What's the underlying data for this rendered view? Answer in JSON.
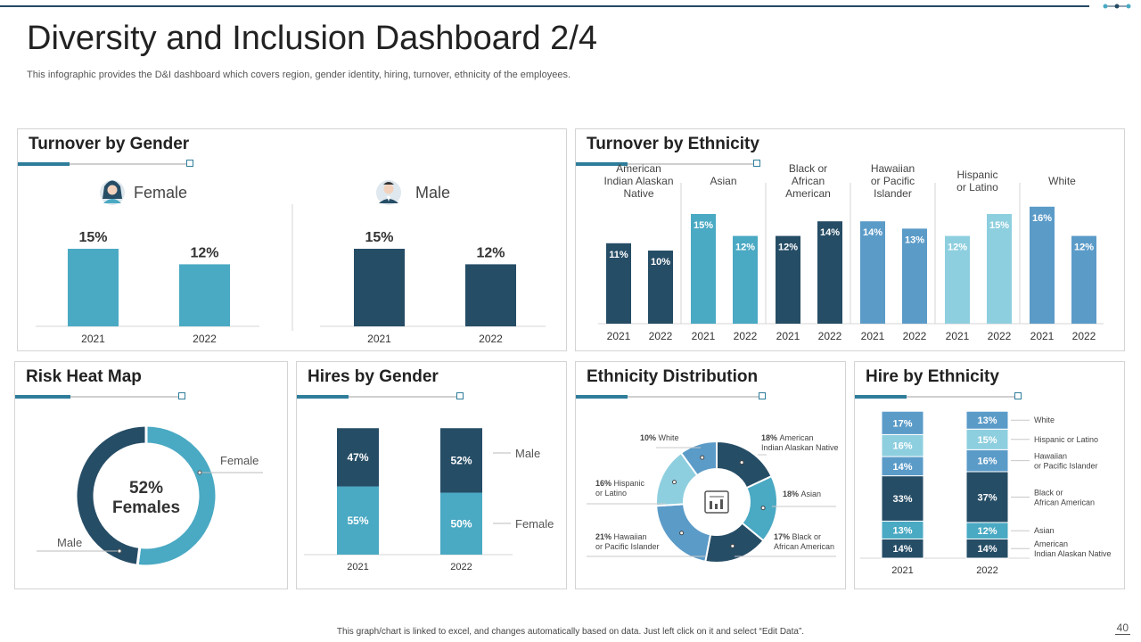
{
  "header": {
    "title": "Diversity and Inclusion Dashboard 2/4",
    "subtitle": "This infographic provides the D&I dashboard which covers region, gender identity, hiring, turnover,  ethnicity of the employees."
  },
  "colors": {
    "dark": "#264d66",
    "mid": "#4aa9c3",
    "steel": "#5b9bc8",
    "light": "#8ecfdf",
    "grey": "#d4d4d4"
  },
  "turnover_gender": {
    "title": "Turnover by Gender",
    "female_label": "Female",
    "male_label": "Male",
    "chart_data": {
      "type": "bar",
      "categories": [
        "2021",
        "2022"
      ],
      "series": [
        {
          "name": "Female",
          "values": [
            15,
            12
          ],
          "labels": [
            "15%",
            "12%"
          ],
          "color": "#4aa9c3"
        },
        {
          "name": "Male",
          "values": [
            15,
            12
          ],
          "labels": [
            "15%",
            "12%"
          ],
          "color": "#264d66"
        }
      ]
    }
  },
  "turnover_ethnicity": {
    "title": "Turnover by Ethnicity",
    "chart_data": {
      "type": "bar",
      "groups": [
        {
          "name": "American Indian Alaskan Native",
          "lines": [
            "American",
            "Indian Alaskan",
            "Native"
          ],
          "years": [
            "2021",
            "2022"
          ],
          "values": [
            11,
            10
          ],
          "labels": [
            "11%",
            "10%"
          ],
          "colors": [
            "#264d66",
            "#264d66"
          ]
        },
        {
          "name": "Asian",
          "lines": [
            "Asian"
          ],
          "years": [
            "2021",
            "2022"
          ],
          "values": [
            15,
            12
          ],
          "labels": [
            "15%",
            "12%"
          ],
          "colors": [
            "#4aa9c3",
            "#4aa9c3"
          ]
        },
        {
          "name": "Black or African American",
          "lines": [
            "Black or",
            "African",
            "American"
          ],
          "years": [
            "2021",
            "2022"
          ],
          "values": [
            12,
            14
          ],
          "labels": [
            "12%",
            "14%"
          ],
          "colors": [
            "#264d66",
            "#264d66"
          ]
        },
        {
          "name": "Hawaiian or Pacific Islander",
          "lines": [
            "Hawaiian",
            "or Pacific",
            "Islander"
          ],
          "years": [
            "2021",
            "2022"
          ],
          "values": [
            14,
            13
          ],
          "labels": [
            "14%",
            "13%"
          ],
          "colors": [
            "#5b9bc8",
            "#5b9bc8"
          ]
        },
        {
          "name": "Hispanic or Latino",
          "lines": [
            "Hispanic",
            "or Latino"
          ],
          "years": [
            "2021",
            "2022"
          ],
          "values": [
            12,
            15
          ],
          "labels": [
            "12%",
            "15%"
          ],
          "colors": [
            "#8ecfdf",
            "#8ecfdf"
          ]
        },
        {
          "name": "White",
          "lines": [
            "White"
          ],
          "years": [
            "2021",
            "2022"
          ],
          "values": [
            16,
            12
          ],
          "labels": [
            "16%",
            "12%"
          ],
          "colors": [
            "#5b9bc8",
            "#5b9bc8"
          ]
        }
      ]
    }
  },
  "risk": {
    "title": "Risk Heat Map",
    "center_value": "52%",
    "center_label": "Females",
    "female_label": "Female",
    "male_label": "Male",
    "chart_data": {
      "type": "pie",
      "slices": [
        {
          "name": "Female",
          "value": 52,
          "color": "#4aa9c3"
        },
        {
          "name": "Male",
          "value": 48,
          "color": "#264d66"
        }
      ]
    }
  },
  "hires_gender": {
    "title": "Hires by Gender",
    "male_label": "Male",
    "female_label": "Female",
    "chart_data": {
      "type": "bar",
      "stacked": true,
      "categories": [
        "2021",
        "2022"
      ],
      "series": [
        {
          "name": "Female",
          "values": [
            55,
            50
          ],
          "labels": [
            "55%",
            "50%"
          ],
          "color": "#4aa9c3"
        },
        {
          "name": "Male",
          "values": [
            47,
            52
          ],
          "labels": [
            "47%",
            "52%"
          ],
          "color": "#264d66"
        }
      ]
    }
  },
  "eth_dist": {
    "title": "Ethnicity Distribution",
    "chart_data": {
      "type": "pie",
      "slices": [
        {
          "name": "American Indian Alaskan Native",
          "value": 18,
          "pct": "18%",
          "text1": "American",
          "text2": "Indian Alaskan Native",
          "color": "#264d66"
        },
        {
          "name": "Asian",
          "value": 18,
          "pct": "18%",
          "text1": "Asian",
          "text2": "",
          "color": "#4aa9c3"
        },
        {
          "name": "Black or African American",
          "value": 17,
          "pct": "17%",
          "text1": "Black or",
          "text2": "African American",
          "color": "#264d66"
        },
        {
          "name": "Hawaiian or Pacific Islander",
          "value": 21,
          "pct": "21%",
          "text1": "Hawaiian",
          "text2": "or Pacific  Islander",
          "color": "#5b9bc8"
        },
        {
          "name": "Hispanic or Latino",
          "value": 16,
          "pct": "16%",
          "text1": "Hispanic",
          "text2": "or Latino",
          "color": "#8ecfdf"
        },
        {
          "name": "White",
          "value": 10,
          "pct": "10%",
          "text1": "White",
          "text2": "",
          "color": "#5b9bc8"
        }
      ]
    }
  },
  "hire_eth": {
    "title": "Hire by Ethnicity",
    "chart_data": {
      "type": "bar",
      "stacked": true,
      "categories": [
        "2021",
        "2022"
      ],
      "series": [
        {
          "name": "American Indian Alaskan Native",
          "l1": "American",
          "l2": "Indian Alaskan Native",
          "values": [
            14,
            14
          ],
          "labels": [
            "14%",
            "14%"
          ],
          "color": "#264d66"
        },
        {
          "name": "Asian",
          "l1": "Asian",
          "l2": "",
          "values": [
            13,
            12
          ],
          "labels": [
            "13%",
            "12%"
          ],
          "color": "#4aa9c3"
        },
        {
          "name": "Black or African American",
          "l1": "Black or",
          "l2": "African American",
          "values": [
            33,
            37
          ],
          "labels": [
            "33%",
            "37%"
          ],
          "color": "#264d66"
        },
        {
          "name": "Hawaiian or Pacific Islander",
          "l1": "Hawaiian",
          "l2": "or Pacific  Islander",
          "values": [
            14,
            16
          ],
          "labels": [
            "14%",
            "16%"
          ],
          "color": "#5b9bc8"
        },
        {
          "name": "Hispanic or Latino",
          "l1": "Hispanic or Latino",
          "l2": "",
          "values": [
            16,
            15
          ],
          "labels": [
            "16%",
            "15%"
          ],
          "color": "#8ecfdf"
        },
        {
          "name": "White",
          "l1": "White",
          "l2": "",
          "values": [
            17,
            13
          ],
          "labels": [
            "17%",
            "13%"
          ],
          "color": "#5b9bc8"
        }
      ]
    }
  },
  "footer": {
    "note": "This graph/chart is linked to excel, and changes automatically based on data. Just left click on it and select “Edit Data”.",
    "page": "40"
  }
}
